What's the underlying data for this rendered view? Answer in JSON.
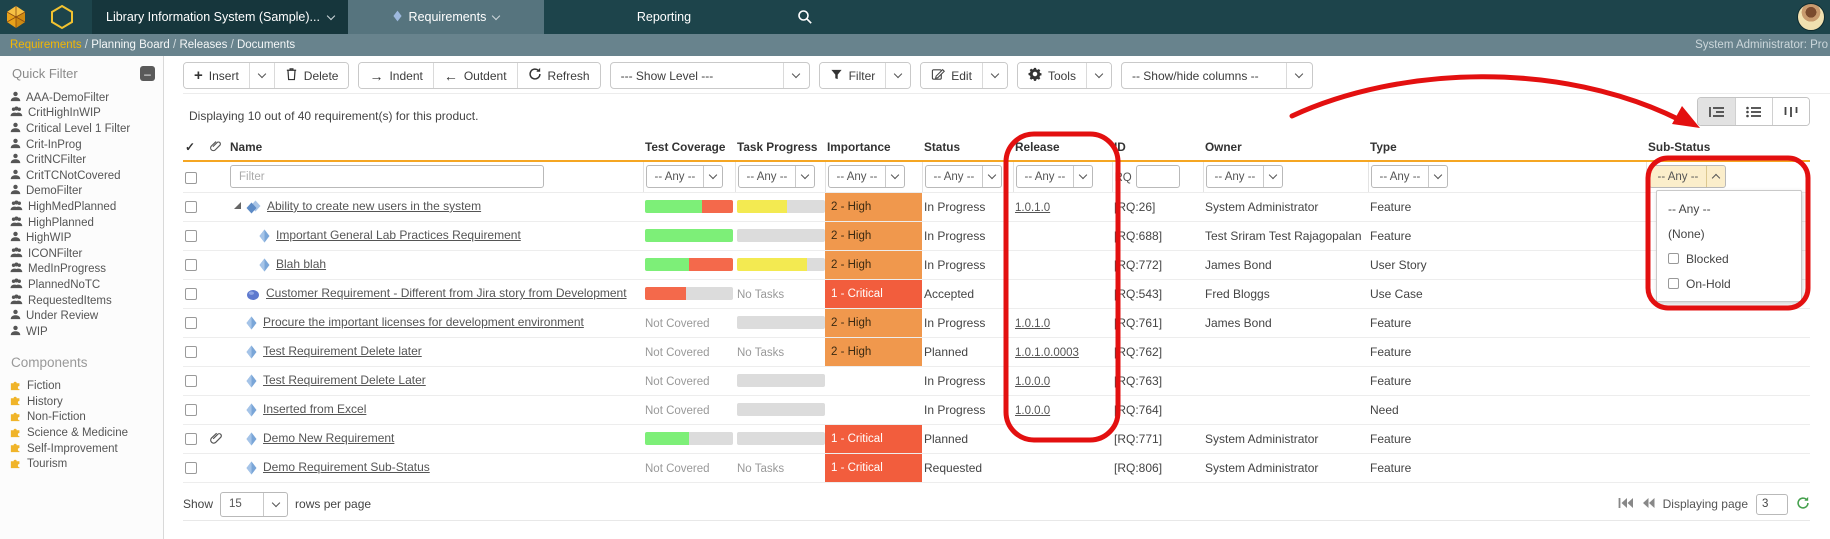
{
  "palette": {
    "accent_orange": "#f5a623",
    "annotation_red": "#e31010",
    "bar_green": "#7def78",
    "bar_red": "#f4694b",
    "bar_yellow": "#f3ea51",
    "bar_gray": "#dcdcdc",
    "importance_high": "#f0984d",
    "importance_critical": "#f25d3d",
    "breadcrumb_active": "#f2b705"
  },
  "topnav": {
    "product": "Library Information System (Sample)...",
    "nav_requirements": "Requirements",
    "nav_reporting": "Reporting"
  },
  "breadcrumb": {
    "items": [
      "Requirements",
      "Planning Board",
      "Releases",
      "Documents"
    ],
    "user": "System Administrator: Pro"
  },
  "sidebar": {
    "quick_filter_title": "Quick Filter",
    "filters": [
      {
        "label": "AAA-DemoFilter",
        "icon": "person-icon"
      },
      {
        "label": "CritHighInWIP",
        "icon": "group-icon"
      },
      {
        "label": "Critical Level 1 Filter",
        "icon": "person-icon"
      },
      {
        "label": "Crit-InProg",
        "icon": "person-icon"
      },
      {
        "label": "CritNCFilter",
        "icon": "person-icon"
      },
      {
        "label": "CritTCNotCovered",
        "icon": "person-icon"
      },
      {
        "label": "DemoFilter",
        "icon": "person-icon"
      },
      {
        "label": "HighMedPlanned",
        "icon": "group-icon"
      },
      {
        "label": "HighPlanned",
        "icon": "group-icon"
      },
      {
        "label": "HighWIP",
        "icon": "person-icon"
      },
      {
        "label": "ICONFilter",
        "icon": "group-icon"
      },
      {
        "label": "MedInProgress",
        "icon": "group-icon"
      },
      {
        "label": "PlannedNoTC",
        "icon": "group-icon"
      },
      {
        "label": "RequestedItems",
        "icon": "group-icon"
      },
      {
        "label": "Under Review",
        "icon": "person-icon"
      },
      {
        "label": "WIP",
        "icon": "person-icon"
      }
    ],
    "components_title": "Components",
    "components": [
      {
        "label": "Fiction",
        "icon": "component-icon"
      },
      {
        "label": "History",
        "icon": "component-icon"
      },
      {
        "label": "Non-Fiction",
        "icon": "component-icon"
      },
      {
        "label": "Science & Medicine",
        "icon": "component-icon"
      },
      {
        "label": "Self-Improvement",
        "icon": "component-icon"
      },
      {
        "label": "Tourism",
        "icon": "component-icon"
      }
    ]
  },
  "toolbar": {
    "insert": "Insert",
    "delete": "Delete",
    "indent": "Indent",
    "outdent": "Outdent",
    "refresh": "Refresh",
    "show_level": "--- Show Level ---",
    "filter": "Filter",
    "edit": "Edit",
    "tools": "Tools",
    "show_hide_columns": "-- Show/hide columns --"
  },
  "summary": "Displaying 10 out of 40 requirement(s) for this product.",
  "grid": {
    "headers": {
      "name": "Name",
      "test_coverage": "Test Coverage",
      "task_progress": "Task Progress",
      "importance": "Importance",
      "status": "Status",
      "release": "Release",
      "id": "ID",
      "owner": "Owner",
      "type": "Type",
      "sub_status": "Sub-Status"
    },
    "filter_placeholder": "Filter",
    "any": "-- Any --",
    "id_prefix": "RQ",
    "rows": [
      {
        "name": "Ability to create new users in the system",
        "level": 0,
        "expander": true,
        "icon": "summary-requirement-icon",
        "attachment": false,
        "coverage": {
          "kind": "bar",
          "segments": [
            {
              "color": "bar_green",
              "pct": 65
            },
            {
              "color": "bar_red",
              "pct": 35
            }
          ]
        },
        "progress": {
          "kind": "bar",
          "segments": [
            {
              "color": "bar_yellow",
              "pct": 57
            },
            {
              "color": "bar_gray",
              "pct": 43
            }
          ]
        },
        "importance": {
          "label": "2 - High",
          "style": "high"
        },
        "status": "In Progress",
        "release": "1.0.1.0",
        "id": "[RQ:26]",
        "owner": "System Administrator",
        "type": "Feature"
      },
      {
        "name": "Important General Lab Practices Requirement",
        "level": 1,
        "expander": false,
        "icon": "feature-icon",
        "attachment": false,
        "coverage": {
          "kind": "bar",
          "segments": [
            {
              "color": "bar_green",
              "pct": 100
            }
          ]
        },
        "progress": {
          "kind": "bar",
          "segments": [
            {
              "color": "bar_gray",
              "pct": 100
            }
          ]
        },
        "importance": {
          "label": "2 - High",
          "style": "high"
        },
        "status": "In Progress",
        "release": "",
        "id": "[RQ:688]",
        "owner": "Test Sriram Test Rajagopalan",
        "type": "Feature"
      },
      {
        "name": "Blah blah",
        "level": 1,
        "expander": false,
        "icon": "feature-icon",
        "attachment": false,
        "coverage": {
          "kind": "bar",
          "segments": [
            {
              "color": "bar_green",
              "pct": 50
            },
            {
              "color": "bar_red",
              "pct": 50
            }
          ]
        },
        "progress": {
          "kind": "bar",
          "segments": [
            {
              "color": "bar_yellow",
              "pct": 80
            },
            {
              "color": "bar_gray",
              "pct": 20
            }
          ]
        },
        "importance": {
          "label": "2 - High",
          "style": "high"
        },
        "status": "In Progress",
        "release": "",
        "id": "[RQ:772]",
        "owner": "James Bond",
        "type": "User Story"
      },
      {
        "name": "Customer Requirement - Different from Jira story from Development",
        "level": 0,
        "expander": false,
        "icon": "use-case-icon",
        "attachment": false,
        "coverage": {
          "kind": "bar",
          "segments": [
            {
              "color": "bar_red",
              "pct": 47
            },
            {
              "color": "bar_gray",
              "pct": 53
            }
          ]
        },
        "progress": {
          "kind": "text",
          "label": "No Tasks"
        },
        "importance": {
          "label": "1 - Critical",
          "style": "critical"
        },
        "status": "Accepted",
        "release": "",
        "id": "[RQ:543]",
        "owner": "Fred Bloggs",
        "type": "Use Case"
      },
      {
        "name": "Procure the important licenses for development environment",
        "level": 0,
        "expander": false,
        "icon": "feature-icon",
        "attachment": false,
        "coverage": {
          "kind": "text",
          "label": "Not Covered"
        },
        "progress": {
          "kind": "bar",
          "segments": [
            {
              "color": "bar_gray",
              "pct": 100
            }
          ]
        },
        "importance": {
          "label": "2 - High",
          "style": "high"
        },
        "status": "In Progress",
        "release": "1.0.1.0",
        "id": "[RQ:761]",
        "owner": "James Bond",
        "type": "Feature"
      },
      {
        "name": "Test Requirement Delete later",
        "level": 0,
        "expander": false,
        "icon": "feature-icon",
        "attachment": false,
        "coverage": {
          "kind": "text",
          "label": "Not Covered"
        },
        "progress": {
          "kind": "text",
          "label": "No Tasks"
        },
        "importance": {
          "label": "2 - High",
          "style": "high"
        },
        "status": "Planned",
        "release": "1.0.1.0.0003",
        "id": "[RQ:762]",
        "owner": "",
        "type": "Feature"
      },
      {
        "name": "Test Requirement Delete Later",
        "level": 0,
        "expander": false,
        "icon": "feature-icon",
        "attachment": false,
        "coverage": {
          "kind": "text",
          "label": "Not Covered"
        },
        "progress": {
          "kind": "bar",
          "segments": [
            {
              "color": "bar_gray",
              "pct": 100
            }
          ]
        },
        "importance": null,
        "status": "In Progress",
        "release": "1.0.0.0",
        "id": "[RQ:763]",
        "owner": "",
        "type": "Feature"
      },
      {
        "name": "Inserted from Excel",
        "level": 0,
        "expander": false,
        "icon": "feature-icon",
        "attachment": false,
        "coverage": {
          "kind": "text",
          "label": "Not Covered"
        },
        "progress": {
          "kind": "bar",
          "segments": [
            {
              "color": "bar_gray",
              "pct": 100
            }
          ]
        },
        "importance": null,
        "status": "In Progress",
        "release": "1.0.0.0",
        "id": "[RQ:764]",
        "owner": "",
        "type": "Need"
      },
      {
        "name": "Demo New Requirement",
        "level": 0,
        "expander": false,
        "icon": "feature-icon",
        "attachment": true,
        "coverage": {
          "kind": "bar",
          "segments": [
            {
              "color": "bar_green",
              "pct": 50
            },
            {
              "color": "bar_gray",
              "pct": 50
            }
          ]
        },
        "progress": {
          "kind": "bar",
          "segments": [
            {
              "color": "bar_gray",
              "pct": 100
            }
          ]
        },
        "importance": {
          "label": "1 - Critical",
          "style": "critical"
        },
        "status": "Planned",
        "release": "",
        "id": "[RQ:771]",
        "owner": "System Administrator",
        "type": "Feature"
      },
      {
        "name": "Demo Requirement Sub-Status",
        "level": 0,
        "expander": false,
        "icon": "feature-icon",
        "attachment": false,
        "coverage": {
          "kind": "text",
          "label": "Not Covered"
        },
        "progress": {
          "kind": "text",
          "label": "No Tasks"
        },
        "importance": {
          "label": "1 - Critical",
          "style": "critical"
        },
        "status": "Requested",
        "release": "",
        "id": "[RQ:806]",
        "owner": "System Administrator",
        "type": "Feature"
      }
    ]
  },
  "substatus_dropdown": {
    "options": [
      {
        "label": "-- Any --",
        "checkbox": false
      },
      {
        "label": "(None)",
        "checkbox": false
      },
      {
        "label": "Blocked",
        "checkbox": true
      },
      {
        "label": "On-Hold",
        "checkbox": true
      }
    ]
  },
  "footer": {
    "show": "Show",
    "page_size": "15",
    "rows_per_page": "rows per page",
    "displaying_page": "Displaying page",
    "page": "3"
  }
}
